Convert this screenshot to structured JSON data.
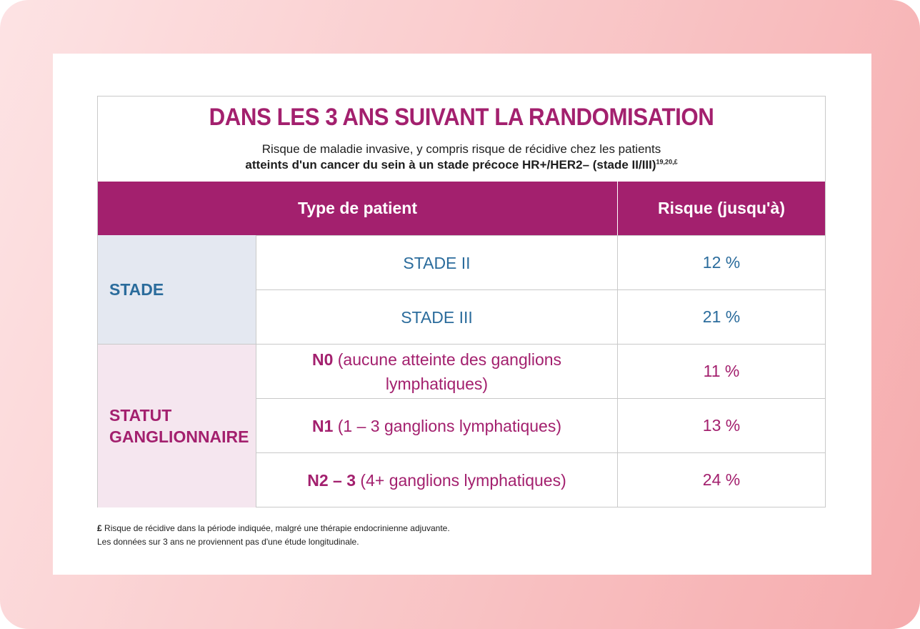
{
  "title": "DANS LES 3 ANS SUIVANT LA RANDOMISATION",
  "subtitle_line1": "Risque de maladie invasive, y compris risque de récidive chez les patients",
  "subtitle_line2": "atteints d'un cancer du sein à un stade précoce HR+/HER2– (stade II/III)",
  "subtitle_refs": "19,20,£",
  "headers": {
    "type": "Type de patient",
    "risk": "Risque (jusqu'à)"
  },
  "groups": {
    "stade": "STADE",
    "statut_line1": "STATUT",
    "statut_line2": "GANGLIONNAIRE"
  },
  "rows": [
    {
      "code": "",
      "desc": "STADE II",
      "risk": "12 %"
    },
    {
      "code": "",
      "desc": "STADE III",
      "risk": "21 %"
    },
    {
      "code": "N0",
      "desc": " (aucune atteinte des ganglions lymphatiques)",
      "risk": "11 %"
    },
    {
      "code": "N1",
      "desc": " (1 – 3 ganglions lymphatiques)",
      "risk": "13 %"
    },
    {
      "code": "N2 – 3",
      "desc": " (4+ ganglions lymphatiques)",
      "risk": "24 %"
    }
  ],
  "footnote_symbol": "£",
  "footnote_line1": " Risque de récidive dans la période indiquée, malgré une thérapie endocrinienne adjuvante.",
  "footnote_line2": "Les données sur 3 ans ne proviennent pas d'une étude longitudinale.",
  "colors": {
    "magenta": "#a3206e",
    "blue": "#2b6c9c",
    "stade_bg": "#e4e8f1",
    "statut_bg": "#f5e6ef"
  }
}
